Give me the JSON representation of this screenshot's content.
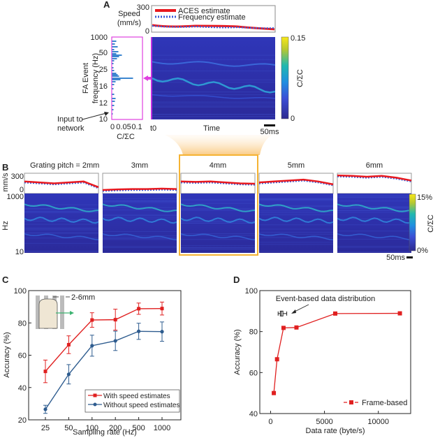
{
  "panels": {
    "A": "A",
    "B": "B",
    "C": "C",
    "D": "D"
  },
  "panel_a": {
    "speed_label_1": "Speed",
    "speed_label_2": "(mm/s)",
    "speed_ticks": [
      "300",
      "0"
    ],
    "legend": [
      "ACES estimate",
      "Frequency estimate"
    ],
    "hist_ylabel_1": "FA Event",
    "hist_ylabel_2": "frequency (Hz)",
    "hist_yticks": [
      "1000",
      "50",
      "25",
      "16",
      "12",
      "10"
    ],
    "hist_xticks": [
      "0",
      "0.05",
      "0.1"
    ],
    "hist_xlabel": "C/ΣC",
    "input_label_1": "Input to",
    "input_label_2": "network",
    "time_start": "t0",
    "time_label": "Time",
    "scale_bar": "50ms",
    "colorbar_max": "0.15",
    "colorbar_min": "0",
    "colorbar_label": "C/ΣC"
  },
  "panel_b": {
    "titles": [
      "Grating pitch = 2mm",
      "3mm",
      "4mm",
      "5mm",
      "6mm"
    ],
    "speed_ylabel": "mm/s",
    "speed_ticks": [
      "300",
      "0"
    ],
    "freq_ylabel": "Hz",
    "freq_ticks": [
      "1000",
      "10"
    ],
    "colorbar_max": "15%",
    "colorbar_min": "0%",
    "colorbar_label": "C/ΣC",
    "scale_bar": "50ms",
    "highlighted_index": 2
  },
  "colors": {
    "red": "#e8191f",
    "blue": "#3a5dd9",
    "magenta": "#e040e0",
    "orange": "#f5b333",
    "spectro_bg": "#2a2ea8",
    "line_c_red": "#e02020",
    "line_c_blue": "#2e5c8f"
  },
  "chart_data": [
    {
      "id": "C",
      "type": "line",
      "title": "",
      "xlabel": "Sampling rate (Hz)",
      "ylabel": "Accuracy (%)",
      "categories": [
        "25",
        "50",
        "100",
        "200",
        "500",
        "1000"
      ],
      "ylim": [
        20,
        100
      ],
      "yticks": [
        20,
        40,
        60,
        80,
        100
      ],
      "legend_position": "bottom-right",
      "inset_label": "2-6mm",
      "series": [
        {
          "name": "With speed estimates",
          "values": [
            50,
            66.5,
            81.8,
            82,
            88.8,
            88.9
          ],
          "err": [
            7,
            5.5,
            4.5,
            6.5,
            3.5,
            4
          ]
        },
        {
          "name": "Without speed estimates",
          "values": [
            26.5,
            48.2,
            65.9,
            68.9,
            74.8,
            74.6
          ],
          "err": [
            2.5,
            6,
            6.5,
            6,
            5,
            6
          ]
        }
      ]
    },
    {
      "id": "D",
      "type": "line",
      "title": "",
      "xlabel": "Data rate (byte/s)",
      "ylabel": "Accuracy (%)",
      "xlim": [
        -1000,
        13000
      ],
      "xticks": [
        0,
        5000,
        10000
      ],
      "ylim": [
        40,
        100
      ],
      "yticks": [
        40,
        60,
        80,
        100
      ],
      "legend_position": "bottom-right",
      "annotation": "Event-based data distribution",
      "series": [
        {
          "name": "Frame-based",
          "x": [
            300,
            600,
            1200,
            2400,
            6000,
            12000
          ],
          "values": [
            50,
            66.5,
            81.8,
            82,
            88.8,
            88.9
          ]
        }
      ],
      "event_box": {
        "min": 700,
        "q1": 900,
        "median": 1000,
        "q3": 1150,
        "max": 1500,
        "y": 88.8
      }
    }
  ]
}
